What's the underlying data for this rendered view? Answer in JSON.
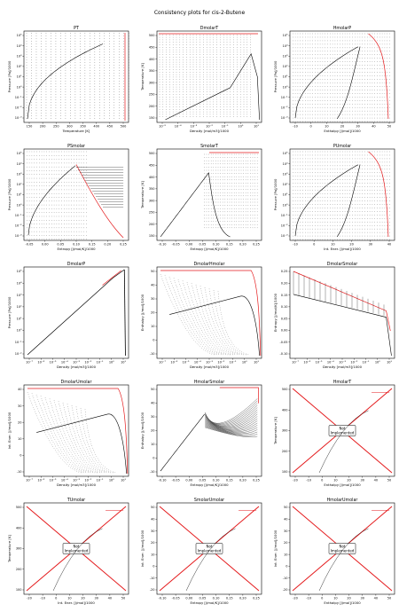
{
  "figure_title": "Consistency plots for cis-2-Butene",
  "not_implemented_label": [
    "Not",
    "Implemented"
  ],
  "colors": {
    "phase_boundary": "#e41a1c",
    "isoline": "#000000",
    "frame": "#000000"
  },
  "chart_data": [
    {
      "id": "PT",
      "title": "PT",
      "type": "line",
      "xlabel": "Temperature [K]",
      "ylabel": "Pressure [Pa]/1000",
      "xticks": [
        "150",
        "200",
        "250",
        "300",
        "350",
        "400",
        "450",
        "500"
      ],
      "yticks": [
        "10⁻³",
        "10⁻²",
        "10⁻¹",
        "10⁰",
        "10¹",
        "10²",
        "10³",
        "10⁴",
        "10⁵"
      ],
      "xlim": [
        125,
        550
      ],
      "ylog": [
        -3.6,
        5
      ],
      "series": [
        {
          "name": "saturation",
          "x": [
            140,
            170,
            200,
            230,
            260,
            290,
            320,
            350,
            380,
            410,
            435
          ],
          "y": [
            -3.0,
            -1.6,
            -0.6,
            0.3,
            1.0,
            1.6,
            2.2,
            2.7,
            3.1,
            3.4,
            3.6
          ]
        }
      ],
      "grid_style": "dots",
      "implemented": true
    },
    {
      "id": "DmolarT",
      "title": "DmolarT",
      "type": "line",
      "xlabel": "Density [mol/m3]/1000",
      "ylabel": "Temperature [K]",
      "xscale": "log",
      "xticks": [
        "10⁻⁵",
        "10⁻⁴",
        "10⁻³",
        "10⁻²",
        "10⁻¹",
        "10⁰",
        "10¹"
      ],
      "yticks": [
        "150",
        "200",
        "250",
        "300",
        "350",
        "400",
        "450",
        "500"
      ],
      "ylim": [
        125,
        550
      ],
      "implemented": true
    },
    {
      "id": "HmolarP",
      "title": "HmolarP",
      "type": "line",
      "xlabel": "Enthalpy [J/mol]/1000",
      "ylabel": "Pressure [Pa]/1000",
      "xticks": [
        "-10",
        "0",
        "10",
        "20",
        "30",
        "40",
        "50"
      ],
      "yticks": [
        "10⁻³",
        "10⁻²",
        "10⁻¹",
        "10⁰",
        "10¹",
        "10²",
        "10³",
        "10⁴",
        "10⁵"
      ],
      "xlim": [
        -15,
        52
      ],
      "implemented": true
    },
    {
      "id": "PSmolar",
      "title": "PSmolar",
      "type": "line",
      "xlabel": "Entropy [J/mol/K]/1000",
      "ylabel": "Pressure [Pa]/1000",
      "xticks": [
        "-0.05",
        "0.00",
        "0.05",
        "0.10",
        "0.15",
        "0.20",
        "0.25"
      ],
      "yticks": [
        "10⁻³",
        "10⁻²",
        "10⁻¹",
        "10⁰",
        "10¹",
        "10²",
        "10³",
        "10⁴",
        "10⁵"
      ],
      "xlim": [
        -0.08,
        0.26
      ],
      "implemented": true
    },
    {
      "id": "SmolarT",
      "title": "SmolarT",
      "type": "line",
      "xlabel": "Entropy [J/mol/K]/1000",
      "ylabel": "Temperature [K]",
      "xticks": [
        "-0.10",
        "-0.05",
        "0.00",
        "0.05",
        "0.10",
        "0.15",
        "0.20",
        "0.25"
      ],
      "yticks": [
        "150",
        "200",
        "250",
        "300",
        "350",
        "400",
        "450",
        "500"
      ],
      "xlim": [
        -0.1,
        0.26
      ],
      "ylim": [
        125,
        550
      ],
      "implemented": true
    },
    {
      "id": "PUmolar",
      "title": "PUmolar",
      "type": "line",
      "xlabel": "Int. Ener. [J/mol]/1000",
      "ylabel": "Pressure [Pa]/1000",
      "xticks": [
        "-10",
        "0",
        "10",
        "20",
        "30",
        "40"
      ],
      "yticks": [
        "10⁻³",
        "10⁻²",
        "10⁻¹",
        "10⁰",
        "10¹",
        "10²",
        "10³",
        "10⁴",
        "10⁵"
      ],
      "xlim": [
        -15,
        45
      ],
      "implemented": true
    },
    {
      "id": "DmolarP",
      "title": "DmolarP",
      "type": "line",
      "xlabel": "Density [mol/m3]/1000",
      "ylabel": "Pressure [Pa]/1000",
      "xscale": "log",
      "xticks": [
        "10⁻⁷",
        "10⁻⁶",
        "10⁻⁵",
        "10⁻⁴",
        "10⁻³",
        "10⁻²",
        "10⁻¹",
        "10⁰",
        "10¹"
      ],
      "yticks": [
        "10⁻²",
        "10⁻¹",
        "10⁰",
        "10¹",
        "10²",
        "10³",
        "10⁴",
        "10⁵"
      ],
      "implemented": true
    },
    {
      "id": "DmolarHmolar",
      "title": "DmolarHmolar",
      "type": "line",
      "xlabel": "Density [mol/m3]/1000",
      "ylabel": "Enthalpy [J/mol]/1000",
      "xscale": "log",
      "xticks": [
        "10⁻⁷",
        "10⁻⁶",
        "10⁻⁵",
        "10⁻⁴",
        "10⁻³",
        "10⁻²",
        "10⁻¹",
        "10⁰",
        "10¹"
      ],
      "yticks": [
        "-10",
        "0",
        "10",
        "20",
        "30",
        "40",
        "50"
      ],
      "ylim": [
        -15,
        52
      ],
      "implemented": true
    },
    {
      "id": "DmolarSmolar",
      "title": "DmolarSmolar",
      "type": "line",
      "xlabel": "Density [mol/m3]/1000",
      "ylabel": "Entropy [J/mol/K]/1000",
      "xscale": "log",
      "xticks": [
        "10⁻⁷",
        "10⁻⁶",
        "10⁻⁵",
        "10⁻⁴",
        "10⁻³",
        "10⁻²",
        "10⁻¹",
        "10⁰",
        "10¹"
      ],
      "yticks": [
        "-0.10",
        "-0.05",
        "0.00",
        "0.05",
        "0.10",
        "0.15",
        "0.20",
        "0.25"
      ],
      "ylim": [
        -0.1,
        0.27
      ],
      "implemented": true
    },
    {
      "id": "DmolarUmolar",
      "title": "DmolarUmolar",
      "type": "line",
      "xlabel": "Density [mol/m3]/1000",
      "ylabel": "Int. Ener. [J/mol]/1000",
      "xscale": "log",
      "xticks": [
        "10⁻⁷",
        "10⁻⁶",
        "10⁻⁵",
        "10⁻⁴",
        "10⁻³",
        "10⁻²",
        "10⁻¹",
        "10⁰",
        "10¹"
      ],
      "yticks": [
        "-10",
        "0",
        "10",
        "20",
        "30",
        "40"
      ],
      "ylim": [
        -15,
        45
      ],
      "implemented": true
    },
    {
      "id": "HmolarSmolar",
      "title": "HmolarSmolar",
      "type": "line",
      "xlabel": "Entropy [J/mol/K]/1000",
      "ylabel": "Enthalpy [J/mol]/1000",
      "xticks": [
        "-0.10",
        "-0.05",
        "0.00",
        "0.05",
        "0.10",
        "0.15",
        "0.20",
        "0.25"
      ],
      "yticks": [
        "-10",
        "0",
        "10",
        "20",
        "30",
        "40",
        "50"
      ],
      "xlim": [
        -0.1,
        0.26
      ],
      "ylim": [
        -15,
        52
      ],
      "implemented": true
    },
    {
      "id": "HmolarT",
      "title": "HmolarT",
      "type": "line",
      "xlabel": "Enthalpy [J/mol]/1000",
      "ylabel": "Temperature [K]",
      "xticks": [
        "-20",
        "-10",
        "0",
        "10",
        "20",
        "30",
        "40",
        "50"
      ],
      "yticks": [
        "100",
        "200",
        "300",
        "400",
        "500"
      ],
      "xlim": [
        -22,
        52
      ],
      "ylim": [
        100,
        550
      ],
      "implemented": false
    },
    {
      "id": "TUmolar",
      "title": "TUmolar",
      "type": "line",
      "xlabel": "Int. Ener. [J/mol]/1000",
      "ylabel": "Temperature [K]",
      "xticks": [
        "-20",
        "-10",
        "0",
        "10",
        "20",
        "30",
        "40",
        "50"
      ],
      "yticks": [
        "100",
        "200",
        "300",
        "400",
        "500"
      ],
      "xlim": [
        -22,
        52
      ],
      "ylim": [
        100,
        550
      ],
      "implemented": false
    },
    {
      "id": "SmolarUmolar",
      "title": "SmolarUmolar",
      "type": "line",
      "xlabel": "Entropy [J/mol/K]/1000",
      "ylabel": "Int. Ener. [J/mol]/1000",
      "xticks": [
        "-0.10",
        "-0.05",
        "0.00",
        "0.05",
        "0.10",
        "0.15",
        "0.20",
        "0.25"
      ],
      "yticks": [
        "-20",
        "-10",
        "0",
        "10",
        "20",
        "30",
        "40",
        "50"
      ],
      "xlim": [
        -0.1,
        0.26
      ],
      "ylim": [
        -22,
        52
      ],
      "implemented": false
    },
    {
      "id": "HmolarUmolar",
      "title": "HmolarUmolar",
      "type": "line",
      "xlabel": "Enthalpy [J/mol]/1000",
      "ylabel": "Int. Ener. [J/mol]/1000",
      "xticks": [
        "-20",
        "-10",
        "0",
        "10",
        "20",
        "30",
        "40",
        "50"
      ],
      "yticks": [
        "-20",
        "-10",
        "0",
        "10",
        "20",
        "30",
        "40",
        "50"
      ],
      "xlim": [
        -22,
        52
      ],
      "ylim": [
        -22,
        52
      ],
      "implemented": false
    }
  ]
}
